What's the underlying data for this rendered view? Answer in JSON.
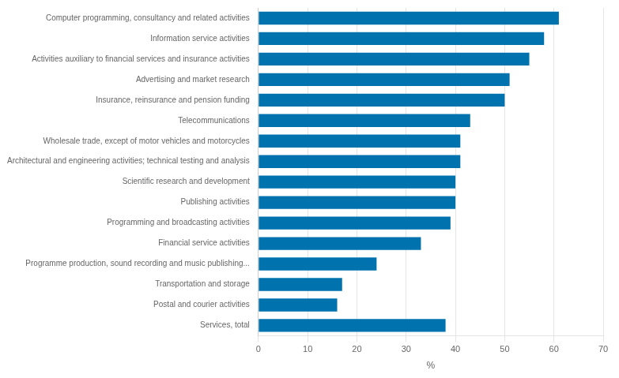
{
  "chart_data": {
    "type": "bar",
    "orientation": "horizontal",
    "categories": [
      "Computer programming, consultancy and related activities",
      "Information service activities",
      "Activities auxiliary to financial services and insurance activities",
      "Advertising and market research",
      "Insurance, reinsurance and pension funding",
      "Telecommunications",
      "Wholesale trade, except of motor vehicles and motorcycles",
      "Architectural and engineering activities; technical testing and analysis",
      "Scientific research and development",
      "Publishing activities",
      "Programming and broadcasting activities",
      "Financial service activities",
      "Programme production, sound recording and music publishing...",
      "Transportation and storage",
      "Postal and courier activities",
      "Services, total"
    ],
    "values": [
      61,
      58,
      55,
      51,
      50,
      43,
      41,
      41,
      40,
      40,
      39,
      33,
      24,
      17,
      16,
      38
    ],
    "color": "#0073ae",
    "xlabel": "%",
    "xlim": [
      0,
      70
    ],
    "xticks": [
      0,
      10,
      20,
      30,
      40,
      50,
      60,
      70
    ],
    "grid": true
  }
}
